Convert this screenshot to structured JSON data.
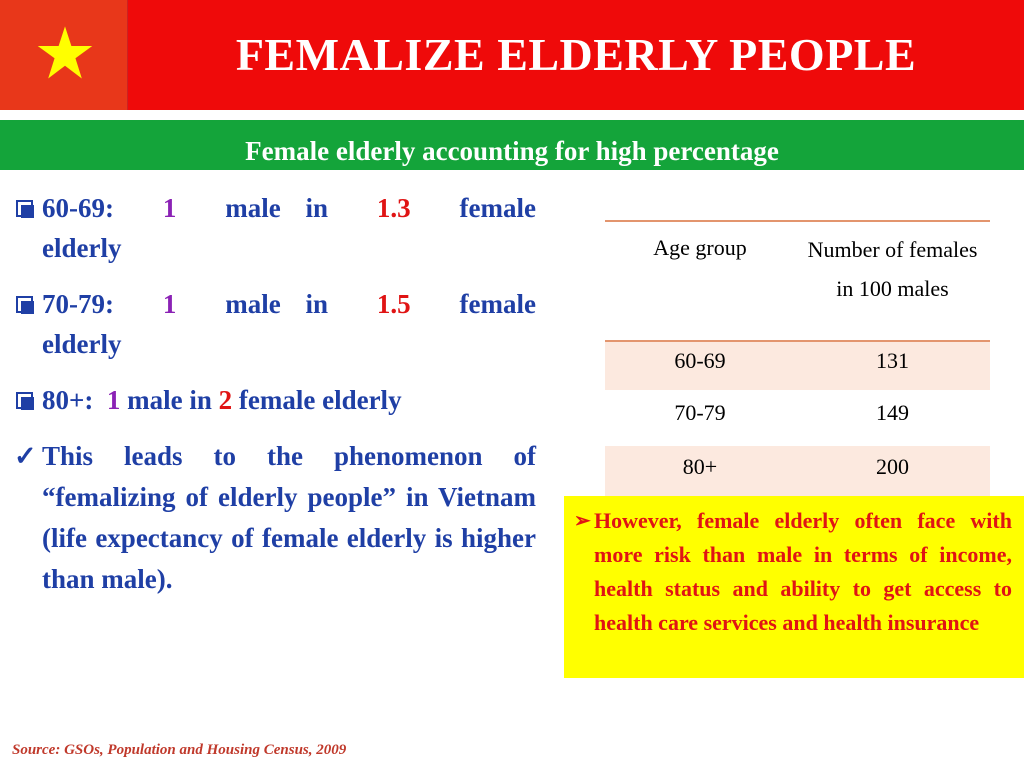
{
  "header": {
    "title": "FEMALIZE ELDERLY PEOPLE",
    "flag_colors": {
      "background": "#e8371a",
      "star": "#ffff00"
    },
    "flag_icon": "star-icon"
  },
  "subtitle": "Female elderly accounting for high percentage",
  "bullets": [
    {
      "range": "60-69:",
      "male_count": "1",
      "text_mid": "male in",
      "female_ratio": "1.3",
      "text_end": "female",
      "line2": "elderly"
    },
    {
      "range": "70-79:",
      "male_count": "1",
      "text_mid": "male in",
      "female_ratio": "1.5",
      "text_end": "female",
      "line2": "elderly"
    },
    {
      "range": "80+:",
      "male_count": "1",
      "text_mid": "male in",
      "female_ratio": "2",
      "text_end": "female elderly"
    }
  ],
  "conclusion": "This leads to the phenomenon of “femalizing of elderly people” in Vietnam (life expectancy of female elderly is higher than male).",
  "table": {
    "headers": [
      "Age group",
      "Number of females in 100 males"
    ],
    "rows": [
      [
        "60-69",
        "131"
      ],
      [
        "70-79",
        "149"
      ],
      [
        "80+",
        "200"
      ]
    ]
  },
  "note": "However, female elderly often face with more risk than male in terms of income, health status and ability to get access to health care services and health insurance",
  "source": "Source: GSOs, Population and Housing Census, 2009",
  "colors": {
    "header_red": "#ef0a0a",
    "subtitle_green": "#14a43a",
    "bullet_blue": "#1f3fa5",
    "highlight_purple": "#8b22b5",
    "highlight_red": "#e01414",
    "note_yellow": "#ffff00"
  }
}
